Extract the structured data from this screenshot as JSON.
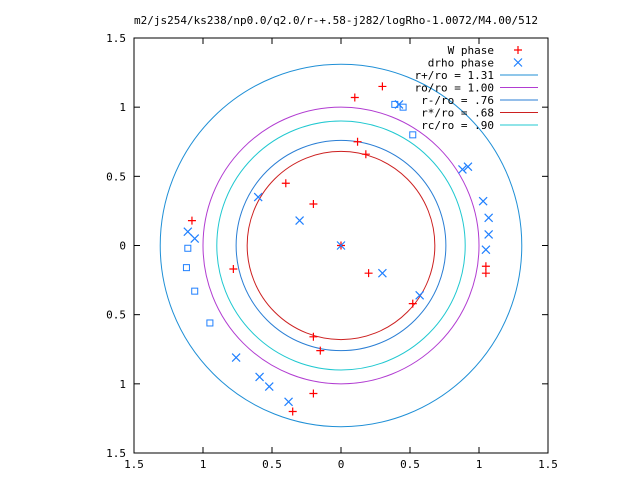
{
  "chart_data": {
    "type": "scatter",
    "title": "m2/js254/ks238/np0.0/q2.0/r-+.58-j282/logRho-1.0072/M4.00/512",
    "xlabel": "",
    "ylabel": "",
    "xlim": [
      -1.5,
      1.5
    ],
    "ylim": [
      -1.5,
      1.5
    ],
    "x_ticks": [
      "1.5",
      "1",
      "0.5",
      "0",
      "0.5",
      "1",
      "1.5"
    ],
    "y_ticks": [
      "1.5",
      "1",
      "0.5",
      "0",
      "0.5",
      "1",
      "1.5"
    ],
    "x_tick_values": [
      -1.5,
      -1,
      -0.5,
      0,
      0.5,
      1,
      1.5
    ],
    "y_tick_values": [
      1.5,
      1,
      0.5,
      0,
      -0.5,
      -1,
      -1.5
    ],
    "grid": false,
    "legend_position": "top-right",
    "series": [
      {
        "name": "W phase",
        "marker": "plus",
        "color": "#ff0000",
        "points": [
          [
            -0.4,
            0.45
          ],
          [
            -0.2,
            0.3
          ],
          [
            0.0,
            0.0
          ],
          [
            0.2,
            -0.2
          ],
          [
            0.52,
            -0.42
          ],
          [
            0.12,
            0.75
          ],
          [
            0.18,
            0.66
          ],
          [
            -0.2,
            -0.66
          ],
          [
            -0.15,
            -0.76
          ],
          [
            1.05,
            -0.15
          ],
          [
            1.05,
            -0.2
          ],
          [
            -1.08,
            0.18
          ],
          [
            -0.78,
            -0.17
          ],
          [
            -0.2,
            -1.07
          ],
          [
            -0.35,
            -1.2
          ],
          [
            0.3,
            1.15
          ],
          [
            0.1,
            1.07
          ]
        ]
      },
      {
        "name": "drho phase",
        "marker": "x",
        "color": "#2080ff",
        "points": [
          [
            -0.6,
            0.35
          ],
          [
            -0.3,
            0.18
          ],
          [
            0.0,
            0.0
          ],
          [
            0.3,
            -0.2
          ],
          [
            0.57,
            -0.36
          ],
          [
            0.92,
            0.57
          ],
          [
            0.88,
            0.55
          ],
          [
            1.03,
            0.32
          ],
          [
            1.07,
            0.2
          ],
          [
            1.07,
            0.08
          ],
          [
            1.05,
            -0.03
          ],
          [
            -0.76,
            -0.81
          ],
          [
            -0.59,
            -0.95
          ],
          [
            -0.52,
            -1.02
          ],
          [
            -0.38,
            -1.13
          ],
          [
            0.42,
            1.02
          ],
          [
            -1.06,
            0.05
          ],
          [
            -1.11,
            0.1
          ]
        ]
      },
      {
        "name": "",
        "marker": "square",
        "color": "#2080ff",
        "points": [
          [
            0.39,
            1.02
          ],
          [
            0.45,
            1.0
          ],
          [
            0.52,
            0.8
          ],
          [
            -1.11,
            -0.02
          ],
          [
            -1.12,
            -0.16
          ],
          [
            -1.06,
            -0.33
          ],
          [
            -0.95,
            -0.56
          ]
        ]
      }
    ],
    "circles": [
      {
        "name": "r+/ro = 1.31",
        "radius": 1.31,
        "color": "#1f8fd6"
      },
      {
        "name": "ro/ro = 1.00",
        "radius": 1.0,
        "color": "#b13cd1"
      },
      {
        "name": "r-/ro = .76",
        "radius": 0.76,
        "color": "#2a7ed4"
      },
      {
        "name": "r*/ro = .68",
        "radius": 0.68,
        "color": "#cc2020"
      },
      {
        "name": "rc/ro = .90",
        "radius": 0.9,
        "color": "#20c8d0"
      }
    ]
  }
}
